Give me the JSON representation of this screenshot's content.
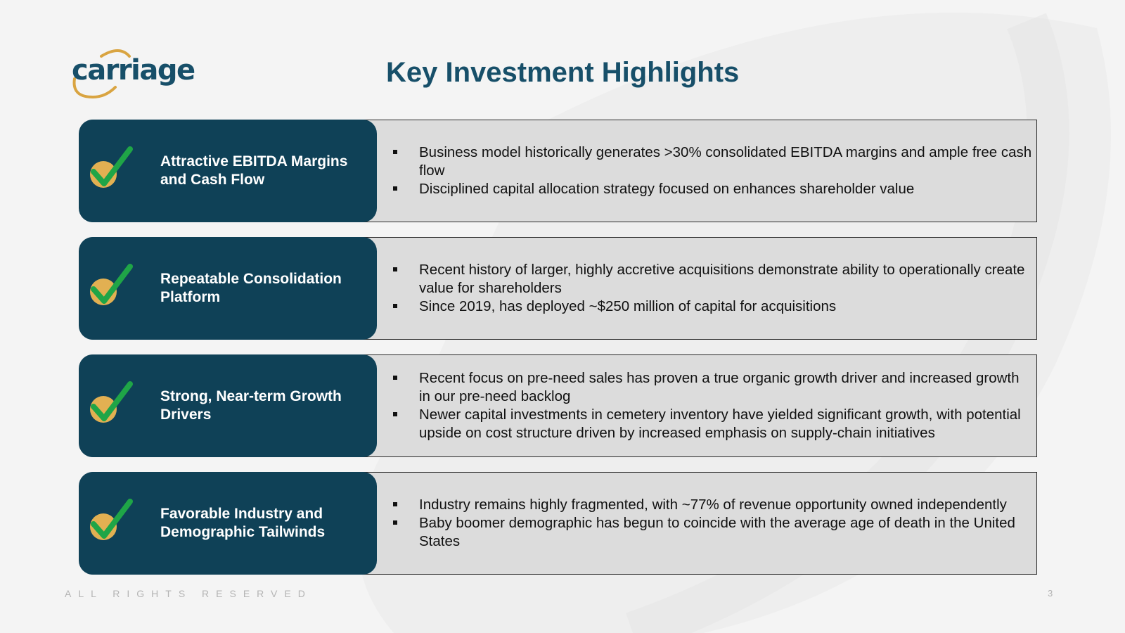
{
  "slide": {
    "title": "Key Investment Highlights",
    "logo_text": "carriage",
    "footer_text": "ALL RIGHTS RESERVED",
    "page_number": "3"
  },
  "colors": {
    "brand_navy": "#0f4157",
    "title_blue": "#174f69",
    "check_green": "#1fa547",
    "check_gold": "#e2b052",
    "panel_gray": "#dcdcdc"
  },
  "highlights": [
    {
      "label": "Attractive EBITDA Margins and Cash Flow",
      "icon": "checkmark-icon",
      "bullets": [
        "Business model historically generates >30% consolidated EBITDA margins and ample free cash flow",
        "Disciplined capital allocation strategy focused on enhances shareholder value"
      ]
    },
    {
      "label": "Repeatable Consolidation Platform",
      "icon": "checkmark-icon",
      "bullets": [
        "Recent history of larger, highly accretive acquisitions demonstrate ability to operationally create value for shareholders",
        "Since 2019, has deployed ~$250 million of capital for acquisitions"
      ]
    },
    {
      "label": "Strong, Near-term Growth Drivers",
      "icon": "checkmark-icon",
      "bullets": [
        "Recent focus on pre-need sales has proven a true organic growth driver and increased growth in our pre-need backlog",
        "Newer capital investments in cemetery inventory have yielded significant growth, with potential upside on cost structure driven by increased emphasis on supply-chain initiatives"
      ]
    },
    {
      "label": "Favorable Industry and Demographic Tailwinds",
      "icon": "checkmark-icon",
      "bullets": [
        "Industry remains highly fragmented, with ~77% of revenue opportunity owned independently",
        "Baby boomer demographic has begun to coincide with the average age of death in the United States"
      ]
    }
  ]
}
